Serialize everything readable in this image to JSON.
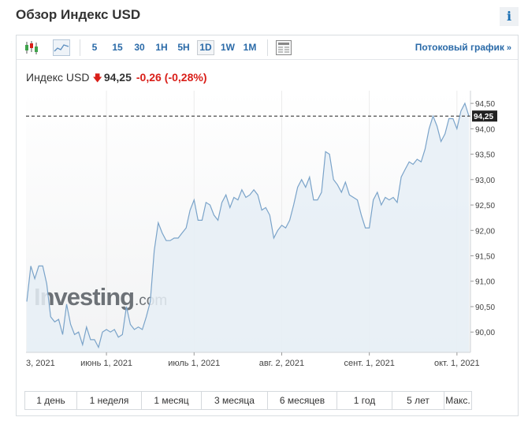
{
  "page": {
    "title": "Обзор Индекс USD",
    "info_label": "i"
  },
  "toolbar": {
    "chart_type_icons": [
      "candlestick-icon",
      "area-chart-icon"
    ],
    "timeframes": [
      {
        "label": "5",
        "active": false
      },
      {
        "label": "15",
        "active": false
      },
      {
        "label": "30",
        "active": false
      },
      {
        "label": "1H",
        "active": false
      },
      {
        "label": "5H",
        "active": false
      },
      {
        "label": "1D",
        "active": true
      },
      {
        "label": "1W",
        "active": false
      },
      {
        "label": "1M",
        "active": false
      }
    ],
    "settings_icon": "table-icon",
    "stream_link": "Потоковый график",
    "stream_arrow": "»"
  },
  "quote": {
    "name": "Индекс USD",
    "direction_arrow": "🡇",
    "price": "94,25",
    "change": "-0,26",
    "change_pct": "(-0,28%)",
    "down_color": "#d91e18"
  },
  "watermark": {
    "brand": "Investing",
    "suffix": ".com"
  },
  "chart_data": {
    "type": "area",
    "line_color": "#7aa3c9",
    "fill_color": "#e6eef6",
    "last_value_label": "94,25",
    "last_value": 94.25,
    "ylim": [
      89.6,
      94.75
    ],
    "y_ticks": [
      90.0,
      90.5,
      91.0,
      91.5,
      92.0,
      92.5,
      93.0,
      93.5,
      94.0,
      94.5
    ],
    "y_tick_labels": [
      "90,00",
      "90,50",
      "91,00",
      "91,50",
      "92,00",
      "92,50",
      "93,00",
      "93,50",
      "94,00",
      "94,50"
    ],
    "x_tick_labels": [
      "3, 2021",
      "июнь 1, 2021",
      "июль 1, 2021",
      "авг. 2, 2021",
      "сент. 1, 2021",
      "окт. 1, 2021"
    ],
    "x_tick_index": [
      0,
      20,
      42,
      64,
      86,
      108
    ],
    "values": [
      90.6,
      91.3,
      91.05,
      91.3,
      91.3,
      90.95,
      90.3,
      90.2,
      90.25,
      89.95,
      90.55,
      90.15,
      89.95,
      90.0,
      89.75,
      90.1,
      89.85,
      89.85,
      89.7,
      90.0,
      90.05,
      90.0,
      90.05,
      89.9,
      89.95,
      90.5,
      90.15,
      90.05,
      90.1,
      90.05,
      90.3,
      90.6,
      91.6,
      92.15,
      91.95,
      91.8,
      91.8,
      91.85,
      91.85,
      91.95,
      92.05,
      92.4,
      92.6,
      92.2,
      92.2,
      92.55,
      92.5,
      92.3,
      92.2,
      92.55,
      92.7,
      92.45,
      92.65,
      92.6,
      92.8,
      92.65,
      92.7,
      92.8,
      92.7,
      92.4,
      92.45,
      92.3,
      91.85,
      92.0,
      92.1,
      92.05,
      92.2,
      92.5,
      92.85,
      93.0,
      92.85,
      93.05,
      92.6,
      92.6,
      92.75,
      93.55,
      93.5,
      93.0,
      92.9,
      92.75,
      92.95,
      92.7,
      92.65,
      92.6,
      92.3,
      92.05,
      92.05,
      92.6,
      92.75,
      92.5,
      92.65,
      92.6,
      92.65,
      92.55,
      93.05,
      93.2,
      93.35,
      93.3,
      93.4,
      93.35,
      93.6,
      94.0,
      94.25,
      94.05,
      93.75,
      93.9,
      94.2,
      94.2,
      94.0,
      94.35,
      94.5,
      94.25
    ]
  },
  "ranges": [
    "1 день",
    "1 неделя",
    "1 месяц",
    "3 месяца",
    "6 месяцев",
    "1 год",
    "5 лет",
    "Макс."
  ]
}
